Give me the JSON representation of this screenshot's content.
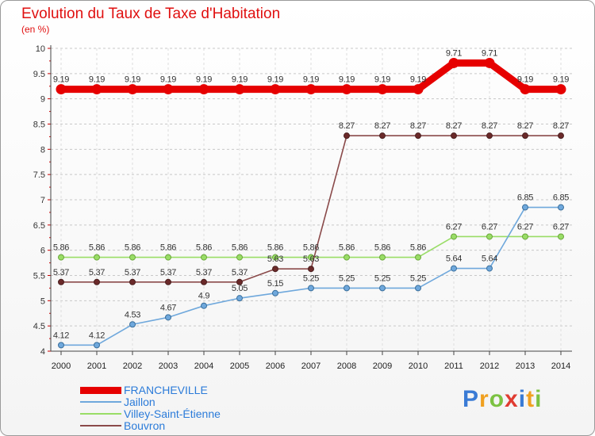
{
  "chart_data": {
    "type": "line",
    "title": "Evolution du Taux de Taxe d'Habitation",
    "ylabel": "(en %)",
    "xlabel": "",
    "x": [
      2000,
      2001,
      2002,
      2003,
      2004,
      2005,
      2006,
      2007,
      2008,
      2009,
      2010,
      2011,
      2012,
      2013,
      2014
    ],
    "ylim": [
      4,
      10
    ],
    "yticks": [
      4,
      4.5,
      5,
      5.5,
      6,
      6.5,
      7,
      7.5,
      8,
      8.5,
      9,
      9.5,
      10
    ],
    "grid": "y-dashed",
    "legend_position": "bottom-left",
    "series": [
      {
        "name": "FRANCHEVILLE",
        "color": "#e60000",
        "values": [
          9.19,
          9.19,
          9.19,
          9.19,
          9.19,
          9.19,
          9.19,
          9.19,
          9.19,
          9.19,
          9.19,
          9.71,
          9.71,
          9.19,
          9.19
        ],
        "labels": [
          "9.19",
          "9.19",
          "9.19",
          "9.19",
          "9.19",
          "9.19",
          "9.19",
          "9.19",
          "9.19",
          "9.19",
          "9.19",
          "9.71",
          "9.71",
          "9.19",
          "9.19"
        ]
      },
      {
        "name": "Jaillon",
        "color": "#6fa8dc",
        "values": [
          4.12,
          4.12,
          4.53,
          4.67,
          4.9,
          5.05,
          5.15,
          5.25,
          5.25,
          5.25,
          5.25,
          5.64,
          5.64,
          6.85,
          6.85
        ],
        "labels": [
          "4.12",
          "4.12",
          "4.53",
          "4.67",
          "4.9",
          "5.05",
          "5.15",
          "5.25",
          "5.25",
          "5.25",
          "5.25",
          "5.64",
          "5.64",
          "6.85",
          "6.85"
        ]
      },
      {
        "name": "Villey-Saint-Étienne",
        "color": "#99dd66",
        "values": [
          5.86,
          5.86,
          5.86,
          5.86,
          5.86,
          5.86,
          5.86,
          5.86,
          5.86,
          5.86,
          5.86,
          6.27,
          6.27,
          6.27,
          6.27
        ],
        "labels": [
          "5.86",
          "5.86",
          "5.86",
          "5.86",
          "5.86",
          "5.86",
          "5.86",
          "5.86",
          "5.86",
          "5.86",
          "5.86",
          "6.27",
          "6.27",
          "6.27",
          "6.27"
        ]
      },
      {
        "name": "Bouvron",
        "color": "#8a4a4a",
        "values": [
          5.37,
          5.37,
          5.37,
          5.37,
          5.37,
          5.37,
          5.63,
          5.63,
          8.27,
          8.27,
          8.27,
          8.27,
          8.27,
          8.27,
          8.27
        ],
        "labels": [
          "5.37",
          "5.37",
          "5.37",
          "5.37",
          "5.37",
          "5.37",
          "5.63",
          "5.63",
          "8.27",
          "8.27",
          "8.27",
          "8.27",
          "8.27",
          "8.27",
          "8.27"
        ]
      }
    ]
  },
  "logo": {
    "letters": [
      "P",
      "r",
      "o",
      "x",
      "i",
      "t",
      "i"
    ],
    "colors": [
      "#3a7bd5",
      "#f0a020",
      "#7cc242",
      "#e03c31",
      "#3a7bd5",
      "#f0a020",
      "#7cc242"
    ]
  }
}
